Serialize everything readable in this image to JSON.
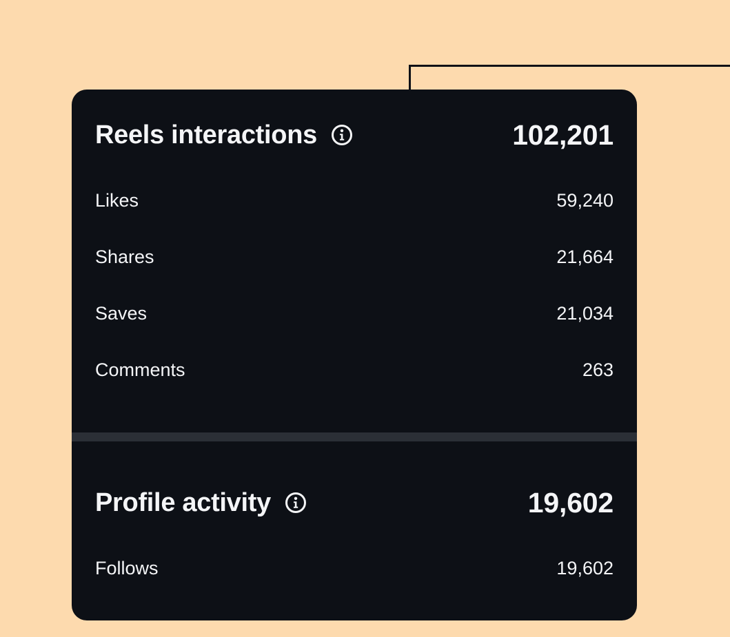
{
  "reels_interactions": {
    "title": "Reels interactions",
    "total": "102,201",
    "info_icon": "info-circle-icon",
    "metrics": [
      {
        "label": "Likes",
        "value": "59,240"
      },
      {
        "label": "Shares",
        "value": "21,664"
      },
      {
        "label": "Saves",
        "value": "21,034"
      },
      {
        "label": "Comments",
        "value": "263"
      }
    ]
  },
  "profile_activity": {
    "title": "Profile activity",
    "total": "19,602",
    "info_icon": "info-circle-icon",
    "metrics": [
      {
        "label": "Follows",
        "value": "19,602"
      }
    ]
  },
  "colors": {
    "background": "#fddaae",
    "card": "#0d1016",
    "divider": "#2b2f36",
    "text": "#f4f5f7"
  }
}
